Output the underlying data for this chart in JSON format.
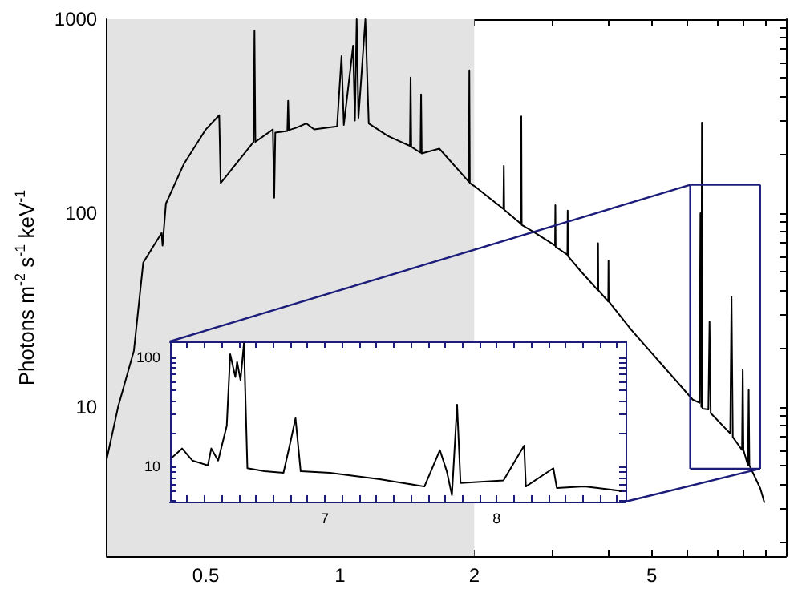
{
  "chart_data": [
    {
      "type": "line",
      "ylabel": "Photons m$^{-2}$ s$^{-1}$ keV$^{-1}$",
      "log": "xy",
      "color": "#000000",
      "line_style": "solid",
      "marker": "none",
      "xlim": [
        0.3,
        10
      ],
      "ylim": [
        1.7,
        1000
      ],
      "xticks": [
        {
          "value": 0.3,
          "label": null
        },
        {
          "value": 0.4,
          "label": null
        },
        0.5,
        {
          "value": 0.6,
          "label": null
        },
        {
          "value": 0.7,
          "label": null
        },
        {
          "value": 0.8,
          "label": null
        },
        {
          "value": 0.9,
          "label": null
        },
        1,
        2,
        {
          "value": 3,
          "label": null
        },
        {
          "value": 4,
          "label": null
        },
        5,
        {
          "value": 6,
          "label": null
        },
        {
          "value": 7,
          "label": null
        },
        {
          "value": 8,
          "label": null
        },
        {
          "value": 9,
          "label": null
        }
      ],
      "yticks": [
        {
          "value": 2,
          "label": null
        },
        {
          "value": 3,
          "label": null
        },
        {
          "value": 4,
          "label": null
        },
        {
          "value": 5,
          "label": null
        },
        {
          "value": 6,
          "label": null
        },
        {
          "value": 7,
          "label": null
        },
        {
          "value": 8,
          "label": null
        },
        {
          "value": 9,
          "label": null
        },
        10,
        {
          "value": 20,
          "label": null
        },
        {
          "value": 30,
          "label": null
        },
        {
          "value": 40,
          "label": null
        },
        {
          "value": 50,
          "label": null
        },
        {
          "value": 60,
          "label": null
        },
        {
          "value": 70,
          "label": null
        },
        {
          "value": 80,
          "label": null
        },
        {
          "value": 90,
          "label": null
        },
        100,
        {
          "value": 200,
          "label": null
        },
        {
          "value": 300,
          "label": null
        },
        {
          "value": 400,
          "label": null
        },
        {
          "value": 500,
          "label": null
        },
        {
          "value": 600,
          "label": null
        },
        {
          "value": 700,
          "label": null
        },
        {
          "value": 800,
          "label": null
        },
        {
          "value": 900,
          "label": null
        },
        1000
      ],
      "bands": [
        {
          "axis": "x",
          "from": 0.3,
          "to": 2,
          "color": "#e3e3e3"
        }
      ],
      "x": [
        0.3,
        0.318,
        0.345,
        0.362,
        0.398,
        0.4,
        0.407,
        0.447,
        0.5,
        0.536,
        0.54,
        0.558,
        0.64,
        0.643,
        0.646,
        0.707,
        0.712,
        0.716,
        0.762,
        0.765,
        0.768,
        0.796,
        0.84,
        0.875,
        0.985,
        1.008,
        1.02,
        1.07,
        1.08,
        1.09,
        1.1,
        1.14,
        1.16,
        1.28,
        1.435,
        1.44,
        1.445,
        1.515,
        1.52,
        1.525,
        1.67,
        1.945,
        1.95,
        1.955,
        2.0,
        2.325,
        2.33,
        2.335,
        2.545,
        2.55,
        2.555,
        2.74,
        3.035,
        3.04,
        3.045,
        3.235,
        3.24,
        3.245,
        3.47,
        3.785,
        3.79,
        3.795,
        3.995,
        4.0,
        4.005,
        4.5,
        6.18,
        6.4,
        6.43,
        6.46,
        6.48,
        6.5,
        6.7,
        6.74,
        6.78,
        7.5,
        7.55,
        7.6,
        7.97,
        8.0,
        8.03,
        8.22,
        8.25,
        8.28,
        8.76,
        8.95
      ],
      "values": [
        5.4,
        10,
        19.5,
        55.5,
        79,
        68,
        112,
        180,
        270,
        320,
        143,
        157,
        233,
        870,
        233,
        270,
        120,
        260,
        265,
        380,
        268,
        275,
        290,
        270,
        280,
        645,
        285,
        730,
        300,
        1000,
        310,
        1000,
        290,
        250,
        222,
        500,
        220,
        205,
        410,
        203,
        215,
        145,
        545,
        143,
        138,
        105,
        175,
        104,
        88,
        315,
        87,
        79,
        68,
        110,
        67,
        61,
        103,
        60,
        50,
        40,
        70,
        40,
        35,
        57,
        35,
        25,
        10.9,
        10.5,
        100,
        10,
        293,
        9.8,
        9.7,
        27.6,
        9.3,
        7.3,
        37,
        7,
        6,
        15.5,
        6,
        5,
        12.3,
        5,
        3.8,
        3.2
      ]
    },
    {
      "type": "line",
      "log": "y",
      "color": "#000000",
      "line_style": "solid",
      "marker": "none",
      "xlim": [
        6.1,
        8.75
      ],
      "ylim": [
        4.8,
        140
      ],
      "xticks": [
        {
          "value": 6.2,
          "label": null
        },
        {
          "value": 6.3,
          "label": null
        },
        {
          "value": 6.4,
          "label": null
        },
        {
          "value": 6.5,
          "label": null
        },
        {
          "value": 6.6,
          "label": null
        },
        {
          "value": 6.7,
          "label": null
        },
        {
          "value": 6.8,
          "label": null
        },
        {
          "value": 6.9,
          "label": null
        },
        7,
        {
          "value": 7.1,
          "label": null
        },
        {
          "value": 7.2,
          "label": null
        },
        {
          "value": 7.3,
          "label": null
        },
        {
          "value": 7.4,
          "label": null
        },
        {
          "value": 7.5,
          "label": null
        },
        {
          "value": 7.6,
          "label": null
        },
        {
          "value": 7.7,
          "label": null
        },
        {
          "value": 7.8,
          "label": null
        },
        {
          "value": 7.9,
          "label": null
        },
        8,
        {
          "value": 8.1,
          "label": null
        },
        {
          "value": 8.2,
          "label": null
        },
        {
          "value": 8.3,
          "label": null
        },
        {
          "value": 8.4,
          "label": null
        },
        {
          "value": 8.5,
          "label": null
        },
        {
          "value": 8.6,
          "label": null
        },
        {
          "value": 8.7,
          "label": null
        }
      ],
      "yticks": [
        {
          "value": 5,
          "label": null
        },
        {
          "value": 6,
          "label": null
        },
        {
          "value": 7,
          "label": null
        },
        {
          "value": 8,
          "label": null
        },
        {
          "value": 9,
          "label": null
        },
        10,
        {
          "value": 20,
          "label": null
        },
        {
          "value": 30,
          "label": null
        },
        {
          "value": 40,
          "label": null
        },
        {
          "value": 50,
          "label": null
        },
        {
          "value": 60,
          "label": null
        },
        {
          "value": 70,
          "label": null
        },
        {
          "value": 80,
          "label": null
        },
        {
          "value": 90,
          "label": null
        },
        100
      ],
      "x": [
        6.11,
        6.17,
        6.23,
        6.32,
        6.34,
        6.38,
        6.43,
        6.45,
        6.48,
        6.49,
        6.51,
        6.53,
        6.55,
        6.65,
        6.76,
        6.8,
        6.83,
        6.86,
        7.03,
        7.32,
        7.58,
        7.67,
        7.71,
        7.74,
        7.77,
        7.79,
        8.04,
        8.16,
        8.17,
        8.33,
        8.35,
        8.51,
        8.73
      ],
      "values": [
        12.1,
        14.7,
        11.4,
        10.3,
        14.7,
        11.4,
        23.7,
        107,
        66,
        91,
        62,
        135,
        9.7,
        9.1,
        8.8,
        16.7,
        27.8,
        9.1,
        8.8,
        7.7,
        6.6,
        14.2,
        9.1,
        5.5,
        37,
        7.1,
        7.5,
        15.6,
        6.6,
        9.7,
        6.4,
        6.6,
        6.0
      ]
    }
  ]
}
